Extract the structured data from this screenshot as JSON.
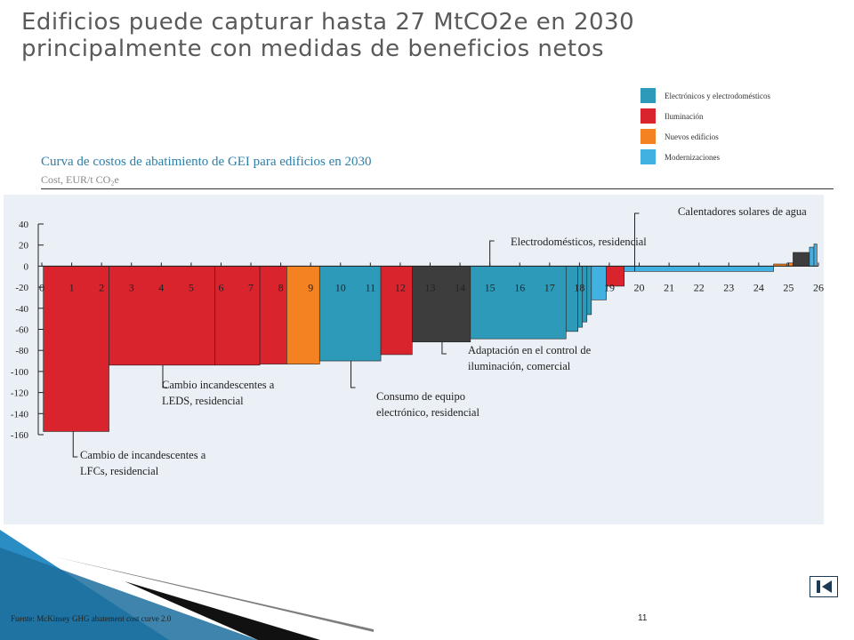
{
  "slide": {
    "title": "Edificios puede capturar hasta 27 MtCO2e en 2030 principalmente con medidas de beneficios netos",
    "source": "Fuente: McKinsey GHG abatement cost curve 2.0",
    "page_number": "11"
  },
  "legend": [
    {
      "label": "Electrónicos y electrodomésticos",
      "color": "#2e9ab9"
    },
    {
      "label": "Iluminación",
      "color": "#d9242e"
    },
    {
      "label": "Nuevos edificios",
      "color": "#f58220"
    },
    {
      "label": "Modernizaciones",
      "color": "#41b1e1"
    }
  ],
  "chart_data": {
    "type": "bar",
    "title": "Curva de costos de abatimiento de GEI para edificios en 2030",
    "ylabel": "Cost, EUR/t CO₂e",
    "xlim": [
      0,
      26
    ],
    "ylim": [
      -160,
      40
    ],
    "x_ticks": [
      "0",
      "1",
      "2",
      "3",
      "4",
      "5",
      "6",
      "7",
      "8",
      "9",
      "10",
      "11",
      "12",
      "13",
      "14",
      "15",
      "16",
      "17",
      "18",
      "19",
      "20",
      "21",
      "22",
      "23",
      "24",
      "25",
      "26"
    ],
    "y_ticks": [
      {
        "value": 40,
        "label": "40"
      },
      {
        "value": 20,
        "label": "20"
      },
      {
        "value": 0,
        "label": "0"
      },
      {
        "value": -20,
        "label": "-20"
      },
      {
        "value": -40,
        "label": "-40"
      },
      {
        "value": -60,
        "label": "-60"
      },
      {
        "value": -80,
        "label": "-80"
      },
      {
        "value": -100,
        "label": "-100"
      },
      {
        "value": -120,
        "label": "-120"
      },
      {
        "value": -140,
        "label": "-140"
      },
      {
        "value": -160,
        "label": "-160"
      }
    ],
    "bars": [
      {
        "x0": 0.05,
        "x1": 2.25,
        "value": -157,
        "color": "#d9242e"
      },
      {
        "x0": 2.25,
        "x1": 5.8,
        "value": -94,
        "color": "#d9242e"
      },
      {
        "x0": 5.8,
        "x1": 7.3,
        "value": -94,
        "color": "#d9242e"
      },
      {
        "x0": 7.3,
        "x1": 8.2,
        "value": -93,
        "color": "#d9242e"
      },
      {
        "x0": 8.2,
        "x1": 9.3,
        "value": -93,
        "color": "#f58220"
      },
      {
        "x0": 9.3,
        "x1": 11.35,
        "value": -90,
        "color": "#2e9ab9"
      },
      {
        "x0": 11.35,
        "x1": 12.4,
        "value": -84,
        "color": "#d9242e"
      },
      {
        "x0": 12.4,
        "x1": 14.35,
        "value": -72,
        "color": "#3d3d3d"
      },
      {
        "x0": 14.35,
        "x1": 17.55,
        "value": -69,
        "color": "#2e9ab9"
      },
      {
        "x0": 17.55,
        "x1": 17.95,
        "value": -62,
        "color": "#2e9ab9"
      },
      {
        "x0": 17.95,
        "x1": 18.1,
        "value": -58,
        "color": "#2e9ab9"
      },
      {
        "x0": 18.1,
        "x1": 18.25,
        "value": -53,
        "color": "#2e9ab9"
      },
      {
        "x0": 18.25,
        "x1": 18.4,
        "value": -46,
        "color": "#2e9ab9"
      },
      {
        "x0": 18.4,
        "x1": 18.9,
        "value": -32,
        "color": "#41b1e1"
      },
      {
        "x0": 18.9,
        "x1": 19.5,
        "value": -19,
        "color": "#d9242e"
      },
      {
        "x0": 19.5,
        "x1": 24.5,
        "value": -5,
        "color": "#41b1e1"
      },
      {
        "x0": 24.5,
        "x1": 24.95,
        "value": 2,
        "color": "#f58220"
      },
      {
        "x0": 24.95,
        "x1": 25.15,
        "value": 3,
        "color": "#f58220"
      },
      {
        "x0": 25.15,
        "x1": 25.7,
        "value": 13,
        "color": "#3d3d3d"
      },
      {
        "x0": 25.7,
        "x1": 25.85,
        "value": 18,
        "color": "#41b1e1"
      },
      {
        "x0": 25.85,
        "x1": 25.95,
        "value": 21,
        "color": "#41b1e1"
      }
    ],
    "annotations": [
      {
        "lines": [
          "Cambio de incandescentes a",
          "LFCs, residencial"
        ],
        "x": 1.05,
        "value": -157
      },
      {
        "lines": [
          "Cambio incandescentes a",
          "LEDS, residencial"
        ],
        "x": 4.05,
        "value": -94
      },
      {
        "lines": [
          "Consumo de equipo",
          "electrónico, residencial"
        ],
        "x": 10.35,
        "value": -90
      },
      {
        "lines": [
          "Adaptación en el control de",
          "iluminación, comercial"
        ],
        "x": 13.4,
        "value": -72
      },
      {
        "lines": [
          "Electrodomésticos, residencial"
        ],
        "x": 15.0,
        "value": 0
      },
      {
        "lines": [
          "Calentadores solares de agua"
        ],
        "x": 19.85,
        "value": -5
      }
    ]
  }
}
